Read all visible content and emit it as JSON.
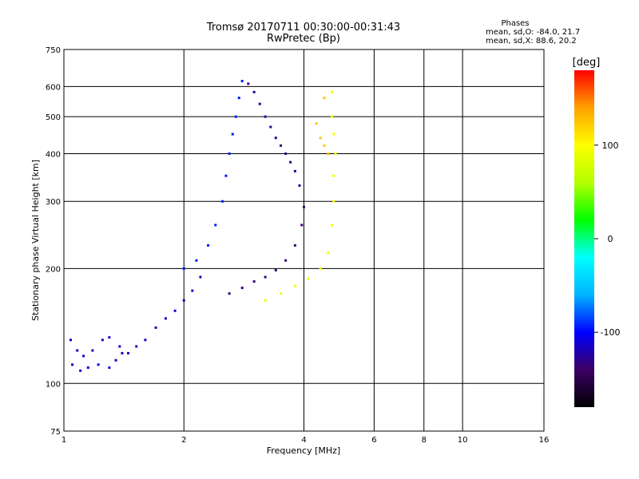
{
  "chart_data": {
    "type": "scatter",
    "title": "Tromsø 20170711 00:30:00-00:31:43",
    "subtitle": "RwPretec (Bp)",
    "xlabel": "Frequency [MHz]",
    "ylabel": "Stationary phase Virtual Height [km]",
    "x_scale": "log",
    "y_scale": "log",
    "xlim": [
      1,
      16
    ],
    "ylim": [
      75,
      750
    ],
    "x_ticks": [
      1,
      2,
      4,
      6,
      8,
      10,
      16
    ],
    "x_tick_labels": [
      "1",
      "2",
      "4",
      "6",
      "8",
      "10",
      "16"
    ],
    "y_ticks": [
      75,
      100,
      200,
      300,
      400,
      500,
      600,
      750
    ],
    "y_tick_labels": [
      "75",
      "100",
      "200",
      "300",
      "400",
      "500",
      "600",
      "750"
    ],
    "grid": true,
    "phases": {
      "heading": "Phases",
      "o_line": "mean, sd,O: -84.0, 21.7",
      "x_line": "mean, sd,X:  88.6, 20.2"
    },
    "colorbar": {
      "label": "[deg]",
      "range": [
        -180,
        180
      ],
      "ticks": [
        100,
        0,
        -100
      ],
      "tick_labels": [
        "100",
        "0",
        "-100"
      ],
      "colors": [
        "#000000",
        "#3c0064",
        "#0000ff",
        "#00b4ff",
        "#00ffff",
        "#00ff00",
        "#b4ff00",
        "#ffff00",
        "#ffa000",
        "#ff0000"
      ]
    },
    "series": [
      {
        "component": "O-trace-low",
        "phase_deg": -115,
        "points": [
          [
            1.04,
            130
          ],
          [
            1.08,
            122
          ],
          [
            1.12,
            118
          ],
          [
            1.18,
            122
          ],
          [
            1.25,
            130
          ],
          [
            1.3,
            132
          ],
          [
            1.38,
            125
          ],
          [
            1.45,
            120
          ],
          [
            1.52,
            125
          ],
          [
            1.6,
            130
          ],
          [
            1.7,
            140
          ],
          [
            1.8,
            148
          ],
          [
            1.9,
            155
          ],
          [
            2.0,
            165
          ],
          [
            2.1,
            175
          ],
          [
            2.2,
            190
          ]
        ]
      },
      {
        "component": "O-trace-low-echo",
        "phase_deg": -110,
        "points": [
          [
            1.05,
            112
          ],
          [
            1.1,
            108
          ],
          [
            1.15,
            110
          ],
          [
            1.22,
            112
          ],
          [
            1.3,
            110
          ],
          [
            1.35,
            115
          ],
          [
            1.4,
            120
          ]
        ]
      },
      {
        "component": "O-trace-F",
        "phase_deg": -95,
        "points": [
          [
            2.0,
            200
          ],
          [
            2.15,
            210
          ],
          [
            2.3,
            230
          ],
          [
            2.4,
            260
          ],
          [
            2.5,
            300
          ],
          [
            2.55,
            350
          ],
          [
            2.6,
            400
          ],
          [
            2.65,
            450
          ],
          [
            2.7,
            500
          ],
          [
            2.75,
            560
          ],
          [
            2.8,
            620
          ]
        ]
      },
      {
        "component": "O-trace-F2",
        "phase_deg": -130,
        "points": [
          [
            2.9,
            610
          ],
          [
            3.0,
            580
          ],
          [
            3.1,
            540
          ],
          [
            3.2,
            500
          ],
          [
            3.3,
            470
          ],
          [
            3.4,
            440
          ],
          [
            3.5,
            420
          ],
          [
            3.6,
            400
          ],
          [
            3.7,
            380
          ],
          [
            3.8,
            360
          ],
          [
            3.9,
            330
          ]
        ]
      },
      {
        "component": "O-trace-bottom",
        "phase_deg": -135,
        "points": [
          [
            2.6,
            172
          ],
          [
            2.8,
            178
          ],
          [
            3.0,
            185
          ],
          [
            3.2,
            190
          ],
          [
            3.4,
            198
          ],
          [
            3.6,
            210
          ],
          [
            3.8,
            230
          ],
          [
            3.95,
            260
          ],
          [
            4.0,
            290
          ]
        ]
      },
      {
        "component": "X-trace",
        "phase_deg": 95,
        "points": [
          [
            3.2,
            165
          ],
          [
            3.5,
            172
          ],
          [
            3.8,
            180
          ],
          [
            4.1,
            188
          ],
          [
            4.4,
            200
          ],
          [
            4.6,
            220
          ],
          [
            4.7,
            260
          ],
          [
            4.75,
            300
          ],
          [
            4.75,
            350
          ],
          [
            4.8,
            400
          ],
          [
            4.75,
            450
          ],
          [
            4.7,
            500
          ],
          [
            4.7,
            580
          ]
        ]
      },
      {
        "component": "X-trace-upper",
        "phase_deg": 125,
        "points": [
          [
            4.3,
            480
          ],
          [
            4.4,
            440
          ],
          [
            4.5,
            420
          ],
          [
            4.6,
            400
          ],
          [
            4.5,
            560
          ]
        ]
      }
    ]
  }
}
